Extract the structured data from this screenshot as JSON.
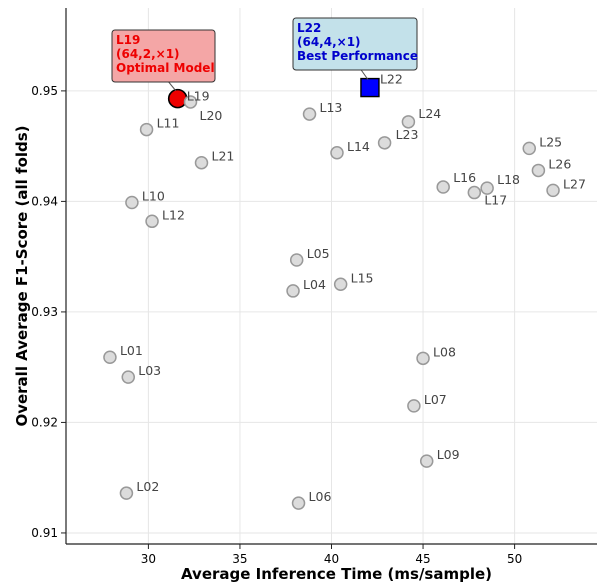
{
  "chart_data": {
    "type": "scatter",
    "xlabel": "Average Inference Time (ms/sample)",
    "ylabel": "Overall Average F1-Score (all folds)",
    "xlim": [
      25.5,
      54.5
    ],
    "ylim": [
      0.909,
      0.9575
    ],
    "xticks": [
      30,
      35,
      40,
      45,
      50
    ],
    "yticks": [
      0.91,
      0.92,
      0.93,
      0.94,
      0.95
    ],
    "grid": true,
    "points": [
      {
        "label": "L01",
        "x": 27.9,
        "y": 0.9259
      },
      {
        "label": "L02",
        "x": 28.8,
        "y": 0.9136
      },
      {
        "label": "L03",
        "x": 28.9,
        "y": 0.9241
      },
      {
        "label": "L04",
        "x": 37.9,
        "y": 0.9319
      },
      {
        "label": "L05",
        "x": 38.1,
        "y": 0.9347
      },
      {
        "label": "L06",
        "x": 38.2,
        "y": 0.9127
      },
      {
        "label": "L07",
        "x": 44.5,
        "y": 0.9215
      },
      {
        "label": "L08",
        "x": 45.0,
        "y": 0.9258
      },
      {
        "label": "L09",
        "x": 45.2,
        "y": 0.9165
      },
      {
        "label": "L10",
        "x": 29.1,
        "y": 0.9399
      },
      {
        "label": "L11",
        "x": 29.9,
        "y": 0.9465
      },
      {
        "label": "L12",
        "x": 30.2,
        "y": 0.9382
      },
      {
        "label": "L13",
        "x": 38.8,
        "y": 0.9479
      },
      {
        "label": "L14",
        "x": 40.3,
        "y": 0.9444
      },
      {
        "label": "L15",
        "x": 40.5,
        "y": 0.9325
      },
      {
        "label": "L16",
        "x": 46.1,
        "y": 0.9413
      },
      {
        "label": "L17",
        "x": 47.8,
        "y": 0.9408
      },
      {
        "label": "L18",
        "x": 48.5,
        "y": 0.9412
      },
      {
        "label": "L19",
        "x": 31.6,
        "y": 0.9493
      },
      {
        "label": "L20",
        "x": 32.3,
        "y": 0.949
      },
      {
        "label": "L21",
        "x": 32.9,
        "y": 0.9435
      },
      {
        "label": "L22",
        "x": 42.1,
        "y": 0.9503
      },
      {
        "label": "L23",
        "x": 42.9,
        "y": 0.9453
      },
      {
        "label": "L24",
        "x": 44.2,
        "y": 0.9472
      },
      {
        "label": "L25",
        "x": 50.8,
        "y": 0.9448
      },
      {
        "label": "L26",
        "x": 51.3,
        "y": 0.9428
      },
      {
        "label": "L27",
        "x": 52.1,
        "y": 0.941
      }
    ],
    "highlights": {
      "optimal": {
        "label": "L19",
        "marker": "circle",
        "color": "#ee0000",
        "annotation": [
          "L19",
          "(64,2,×1)",
          "Optimal Model"
        ],
        "box_color": "#f4a6a6",
        "text_color": "#ee0000"
      },
      "best": {
        "label": "L22",
        "marker": "square",
        "color": "#0000ff",
        "annotation": [
          "L22",
          "(64,4,×1)",
          "Best Performance"
        ],
        "box_color": "#c3e1ea",
        "text_color": "#0000cc"
      }
    },
    "colors": {
      "point_fill": "#dcdcdc",
      "point_edge": "#999999",
      "grid": "#e6e6e6"
    }
  }
}
